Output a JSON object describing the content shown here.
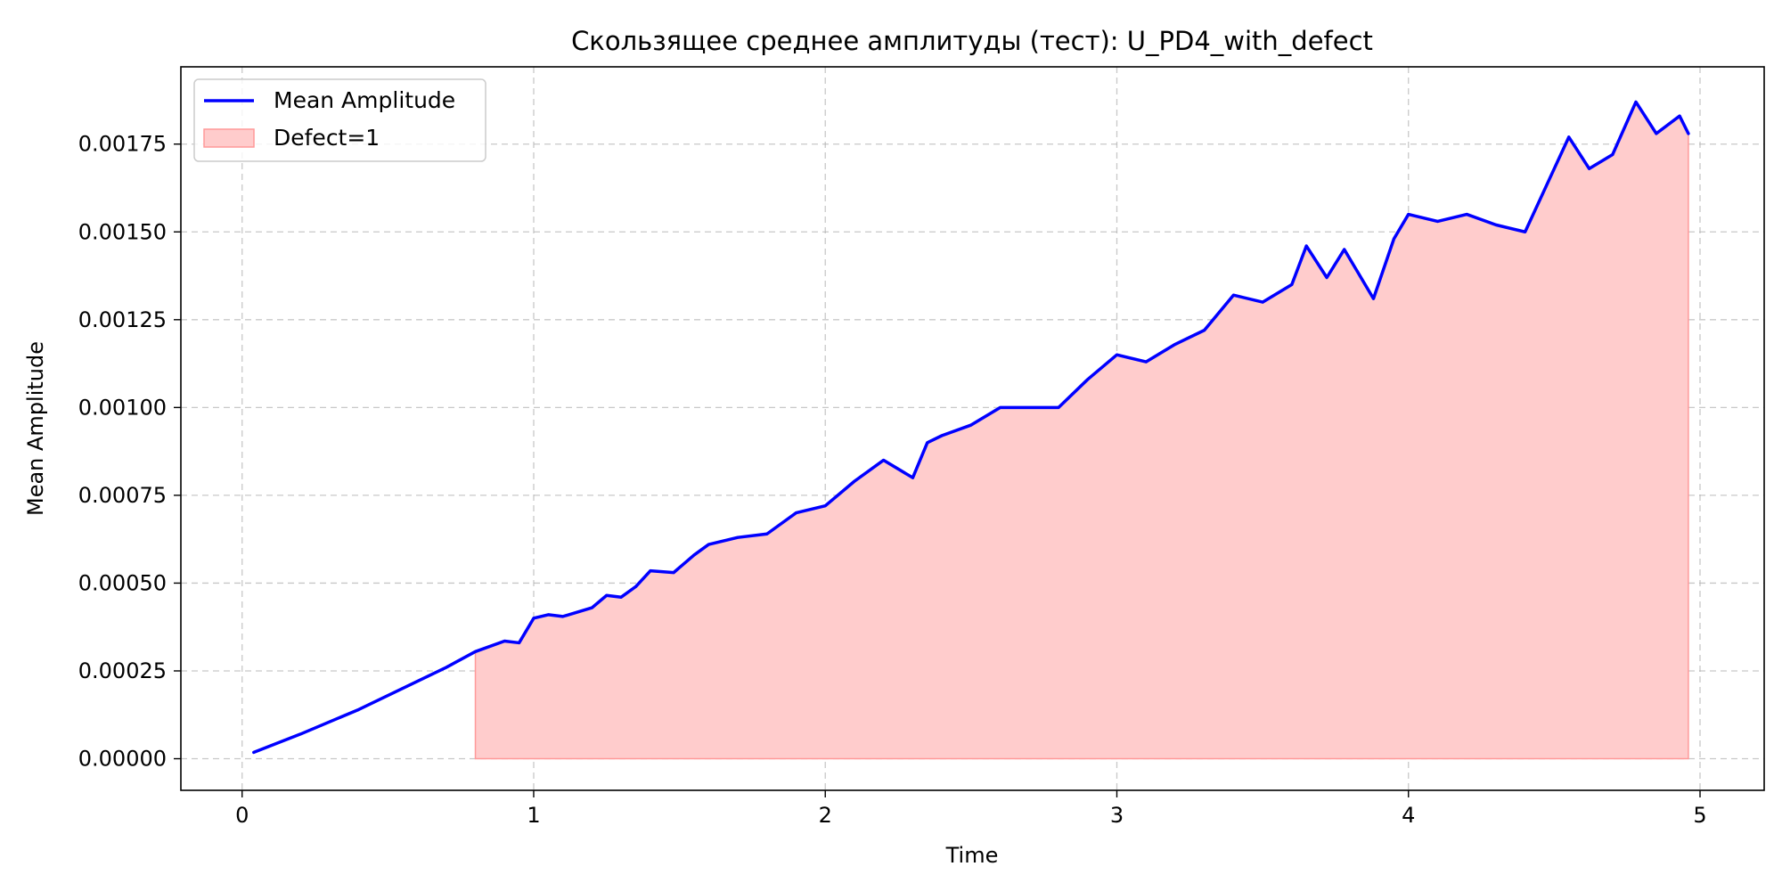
{
  "chart_data": {
    "type": "line",
    "title": "Скользящее среднее амплитуды (тест): U_PD4_with_defect",
    "xlabel": "Time",
    "ylabel": "Mean Amplitude",
    "xlim": [
      -0.21,
      5.22
    ],
    "ylim": [
      -9e-05,
      0.00197
    ],
    "x_ticks": [
      0,
      1,
      2,
      3,
      4,
      5
    ],
    "x_tick_labels": [
      "0",
      "1",
      "2",
      "3",
      "4",
      "5"
    ],
    "y_ticks": [
      0,
      0.00025,
      0.0005,
      0.00075,
      0.001,
      0.00125,
      0.0015,
      0.00175
    ],
    "y_tick_labels": [
      "0.00000",
      "0.00025",
      "0.00050",
      "0.00075",
      "0.00100",
      "0.00125",
      "0.00150",
      "0.00175"
    ],
    "grid": true,
    "legend_position": "top-left",
    "colors": {
      "line": "#0000ff",
      "defect_fill": "#ffcccc",
      "defect_edge": "#ff9999"
    },
    "series": [
      {
        "name": "Mean Amplitude",
        "points": [
          [
            0.04,
            1.8e-05
          ],
          [
            0.2,
            7e-05
          ],
          [
            0.4,
            0.00014
          ],
          [
            0.55,
            0.0002
          ],
          [
            0.7,
            0.00026
          ],
          [
            0.8,
            0.000305
          ],
          [
            0.9,
            0.000335
          ],
          [
            0.95,
            0.00033
          ],
          [
            1.0,
            0.0004
          ],
          [
            1.05,
            0.00041
          ],
          [
            1.1,
            0.000405
          ],
          [
            1.2,
            0.00043
          ],
          [
            1.25,
            0.000465
          ],
          [
            1.3,
            0.00046
          ],
          [
            1.35,
            0.00049
          ],
          [
            1.4,
            0.000535
          ],
          [
            1.48,
            0.00053
          ],
          [
            1.55,
            0.00058
          ],
          [
            1.6,
            0.00061
          ],
          [
            1.7,
            0.00063
          ],
          [
            1.8,
            0.00064
          ],
          [
            1.9,
            0.0007
          ],
          [
            2.0,
            0.00072
          ],
          [
            2.1,
            0.00079
          ],
          [
            2.2,
            0.00085
          ],
          [
            2.3,
            0.0008
          ],
          [
            2.35,
            0.0009
          ],
          [
            2.4,
            0.00092
          ],
          [
            2.5,
            0.00095
          ],
          [
            2.6,
            0.001
          ],
          [
            2.7,
            0.001
          ],
          [
            2.8,
            0.001
          ],
          [
            2.9,
            0.00108
          ],
          [
            3.0,
            0.00115
          ],
          [
            3.1,
            0.00113
          ],
          [
            3.2,
            0.00118
          ],
          [
            3.3,
            0.00122
          ],
          [
            3.4,
            0.00132
          ],
          [
            3.5,
            0.0013
          ],
          [
            3.6,
            0.00135
          ],
          [
            3.65,
            0.00146
          ],
          [
            3.72,
            0.00137
          ],
          [
            3.78,
            0.00145
          ],
          [
            3.88,
            0.00131
          ],
          [
            3.95,
            0.00148
          ],
          [
            4.0,
            0.00155
          ],
          [
            4.1,
            0.00153
          ],
          [
            4.2,
            0.00155
          ],
          [
            4.3,
            0.00152
          ],
          [
            4.4,
            0.0015
          ],
          [
            4.5,
            0.00168
          ],
          [
            4.55,
            0.00177
          ],
          [
            4.62,
            0.00168
          ],
          [
            4.7,
            0.00172
          ],
          [
            4.78,
            0.00187
          ],
          [
            4.85,
            0.00178
          ],
          [
            4.93,
            0.00183
          ],
          [
            4.96,
            0.00178
          ]
        ]
      },
      {
        "name": "Defect=1",
        "kind": "fill",
        "x_start": 0.8,
        "x_end": 4.96
      }
    ]
  }
}
